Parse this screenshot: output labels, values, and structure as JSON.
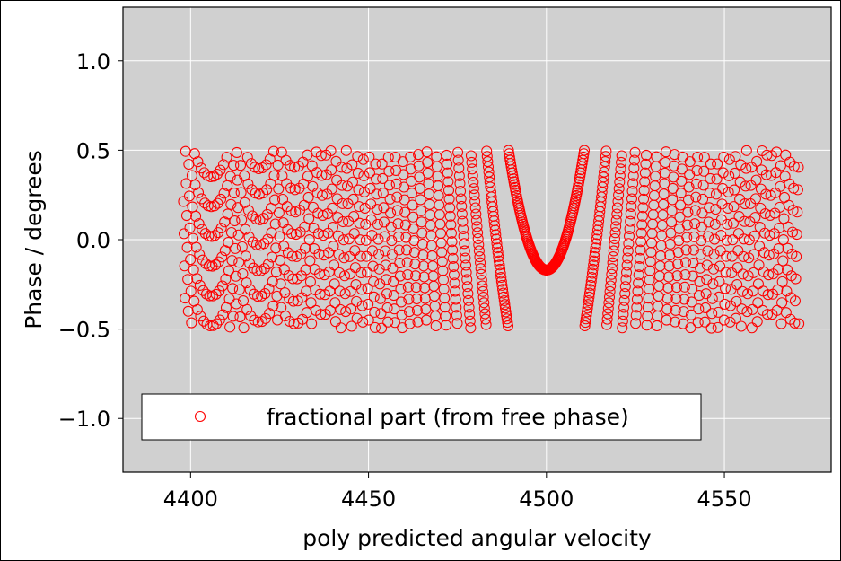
{
  "chart_data": {
    "type": "scatter",
    "title": "",
    "xlabel": "poly predicted angular velocity",
    "ylabel": "Phase / degrees",
    "xlim": [
      4381,
      4580
    ],
    "ylim": [
      -1.3,
      1.3
    ],
    "xticks": [
      4400,
      4450,
      4500,
      4550
    ],
    "yticks": [
      -1.0,
      -0.5,
      0.0,
      0.5,
      1.0
    ],
    "xtick_labels": [
      "4400",
      "4450",
      "4500",
      "4550"
    ],
    "ytick_labels": [
      "−1.0",
      "−0.5",
      "0.0",
      "0.5",
      "1.0"
    ],
    "grid": true,
    "legend_position": "lower-left",
    "colors": {
      "plot_background": "#d0d0d0",
      "grid": "#ffffff",
      "marker": "#ff0000"
    },
    "series": [
      {
        "name": "fractional part (from free phase)",
        "marker": "open-circle",
        "color": "#ff0000",
        "x_range": [
          4398,
          4571
        ],
        "y_wrap_range": [
          -0.5,
          0.5
        ],
        "x_spacing": 0.15,
        "features": [
          {
            "x": 4400,
            "y_peak": 0.33,
            "type": "arch"
          },
          {
            "x": 4433,
            "y_peak": 0.49,
            "type": "arch"
          },
          {
            "x": 4433,
            "y_peak": 0.16,
            "type": "arch"
          },
          {
            "x": 4433,
            "y_peak": -0.18,
            "type": "arch"
          },
          {
            "x": 4450,
            "y_peak": 0.08,
            "type": "arch"
          },
          {
            "x": 4450,
            "y_peak": -0.42,
            "type": "arch"
          },
          {
            "x": 4467,
            "y_peak": 0.33,
            "type": "arch"
          },
          {
            "x": 4467,
            "y_peak": 0.0,
            "type": "arch"
          },
          {
            "x": 4467,
            "y_peak": -0.34,
            "type": "arch"
          },
          {
            "x": 4500,
            "y_peak": -0.17,
            "type": "arch"
          },
          {
            "x": 4533,
            "y_peak": 0.33,
            "type": "arch"
          },
          {
            "x": 4533,
            "y_peak": 0.0,
            "type": "arch"
          },
          {
            "x": 4533,
            "y_peak": -0.34,
            "type": "arch"
          },
          {
            "x": 4550,
            "y_peak": 0.08,
            "type": "arch"
          },
          {
            "x": 4550,
            "y_peak": -0.42,
            "type": "arch"
          },
          {
            "x": 4567,
            "y_peak": 0.49,
            "type": "arch"
          },
          {
            "x": 4567,
            "y_peak": 0.16,
            "type": "arch"
          },
          {
            "x": 4567,
            "y_peak": -0.17,
            "type": "arch"
          }
        ]
      }
    ]
  }
}
